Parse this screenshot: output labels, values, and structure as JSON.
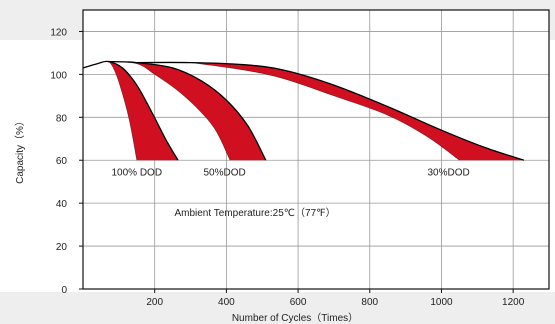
{
  "chart_data": {
    "type": "line",
    "title": "",
    "xlabel": "Number of Cycles（Times）",
    "ylabel": "Capacity（%）",
    "xlim": [
      0,
      1300
    ],
    "ylim": [
      0,
      130
    ],
    "xticks": [
      200,
      400,
      600,
      800,
      1000,
      1200
    ],
    "yticks": [
      0,
      20,
      40,
      60,
      80,
      100,
      120
    ],
    "grid": true,
    "fill_color": "#d01020",
    "series": [
      {
        "name": "100% DOD",
        "upper": [
          [
            0,
            103
          ],
          [
            40,
            105
          ],
          [
            70,
            106
          ],
          [
            110,
            103
          ],
          [
            150,
            95
          ],
          [
            190,
            83
          ],
          [
            230,
            70
          ],
          [
            265,
            60
          ]
        ],
        "lower": [
          [
            0,
            103
          ],
          [
            40,
            105
          ],
          [
            70,
            106
          ],
          [
            90,
            101
          ],
          [
            110,
            91
          ],
          [
            130,
            78
          ],
          [
            150,
            60
          ]
        ]
      },
      {
        "name": "50%DOD",
        "upper": [
          [
            70,
            106
          ],
          [
            150,
            105.5
          ],
          [
            250,
            103
          ],
          [
            330,
            97
          ],
          [
            400,
            88
          ],
          [
            460,
            76
          ],
          [
            510,
            60
          ]
        ],
        "lower": [
          [
            70,
            106
          ],
          [
            150,
            105
          ],
          [
            200,
            100
          ],
          [
            260,
            93
          ],
          [
            320,
            84
          ],
          [
            370,
            74
          ],
          [
            410,
            60
          ]
        ]
      },
      {
        "name": "30%DOD",
        "upper": [
          [
            150,
            105.5
          ],
          [
            300,
            105.5
          ],
          [
            450,
            104.5
          ],
          [
            560,
            102
          ],
          [
            700,
            95
          ],
          [
            850,
            85
          ],
          [
            1000,
            74
          ],
          [
            1120,
            66
          ],
          [
            1230,
            60
          ]
        ],
        "lower": [
          [
            300,
            105.5
          ],
          [
            450,
            102
          ],
          [
            560,
            98
          ],
          [
            700,
            90
          ],
          [
            850,
            81
          ],
          [
            960,
            71
          ],
          [
            1050,
            60
          ]
        ]
      }
    ],
    "annotations": [
      {
        "text": "100% DOD",
        "x": 150,
        "y": 53
      },
      {
        "text": "50%DOD",
        "x": 395,
        "y": 53
      },
      {
        "text": "30%DOD",
        "x": 1020,
        "y": 53
      },
      {
        "text": "Ambient Temperature:25℃（77℉）",
        "x": 480,
        "y": 34
      }
    ],
    "colors": {
      "curve": "#000000",
      "fill": "#d01020",
      "grid": "#999999"
    }
  }
}
